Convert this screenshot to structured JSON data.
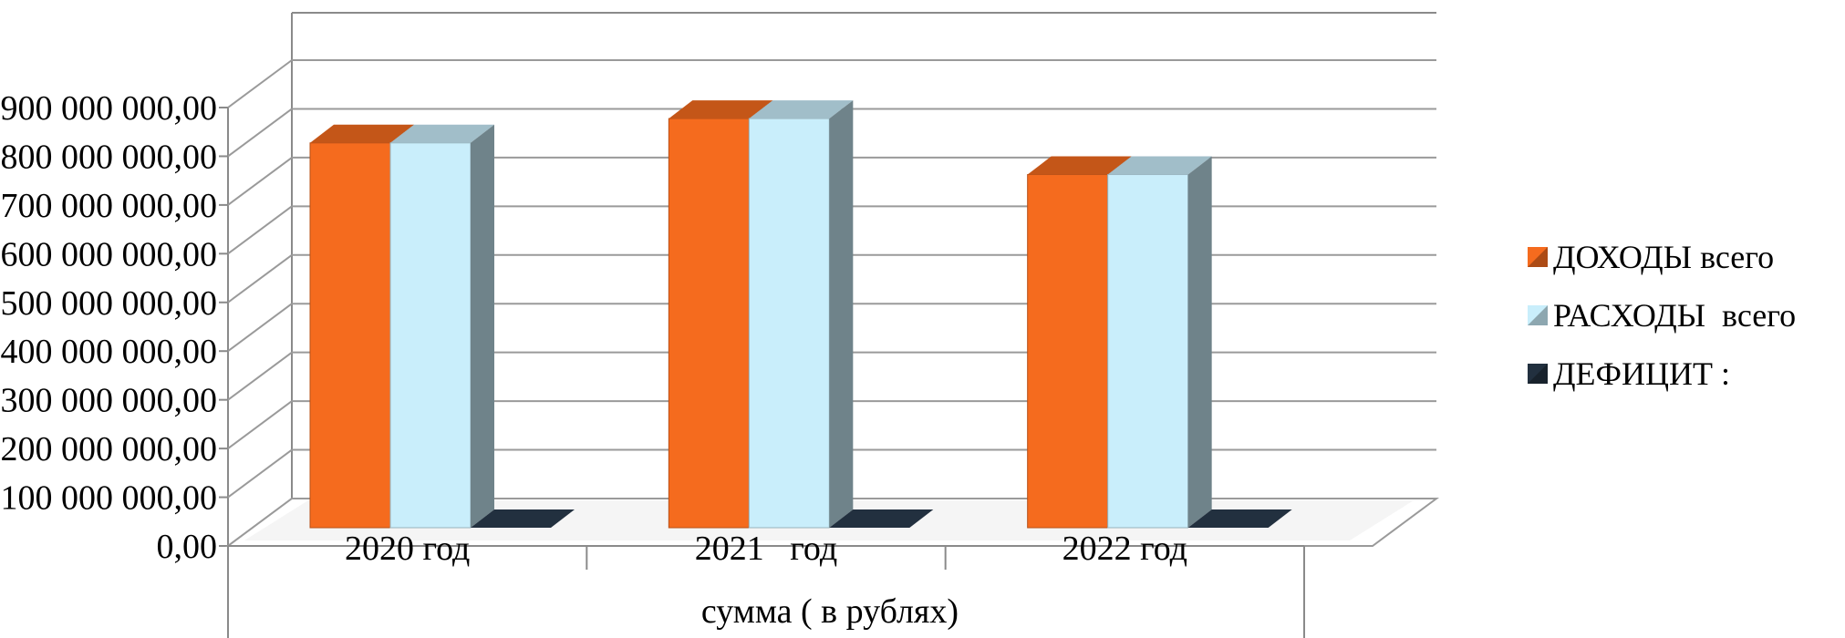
{
  "chart_data": {
    "type": "bar",
    "style": "3d-clustered-column",
    "categories": [
      "2020 год",
      "2021   год",
      "2022 год"
    ],
    "series": [
      {
        "name": "ДОХОДЫ всего",
        "values": [
          790000000,
          840000000,
          725000000
        ],
        "color": "#f56b1e"
      },
      {
        "name": "РАСХОДЫ  всего",
        "values": [
          790000000,
          840000000,
          725000000
        ],
        "color": "#c9eefb"
      },
      {
        "name": "ДЕФИЦИТ :",
        "values": [
          0,
          0,
          0
        ],
        "color": "#22303f"
      }
    ],
    "yticks": [
      "0,00",
      "100 000 000,00",
      "200 000 000,00",
      "300 000 000,00",
      "400 000 000,00",
      "500 000 000,00",
      "600 000 000,00",
      "700 000 000,00",
      "800 000 000,00",
      "900 000 000,00"
    ],
    "ylim": [
      0,
      900000000
    ],
    "xlabel": "сумма ( в рублях)",
    "ylabel": "",
    "grid": true,
    "legend_position": "right"
  }
}
